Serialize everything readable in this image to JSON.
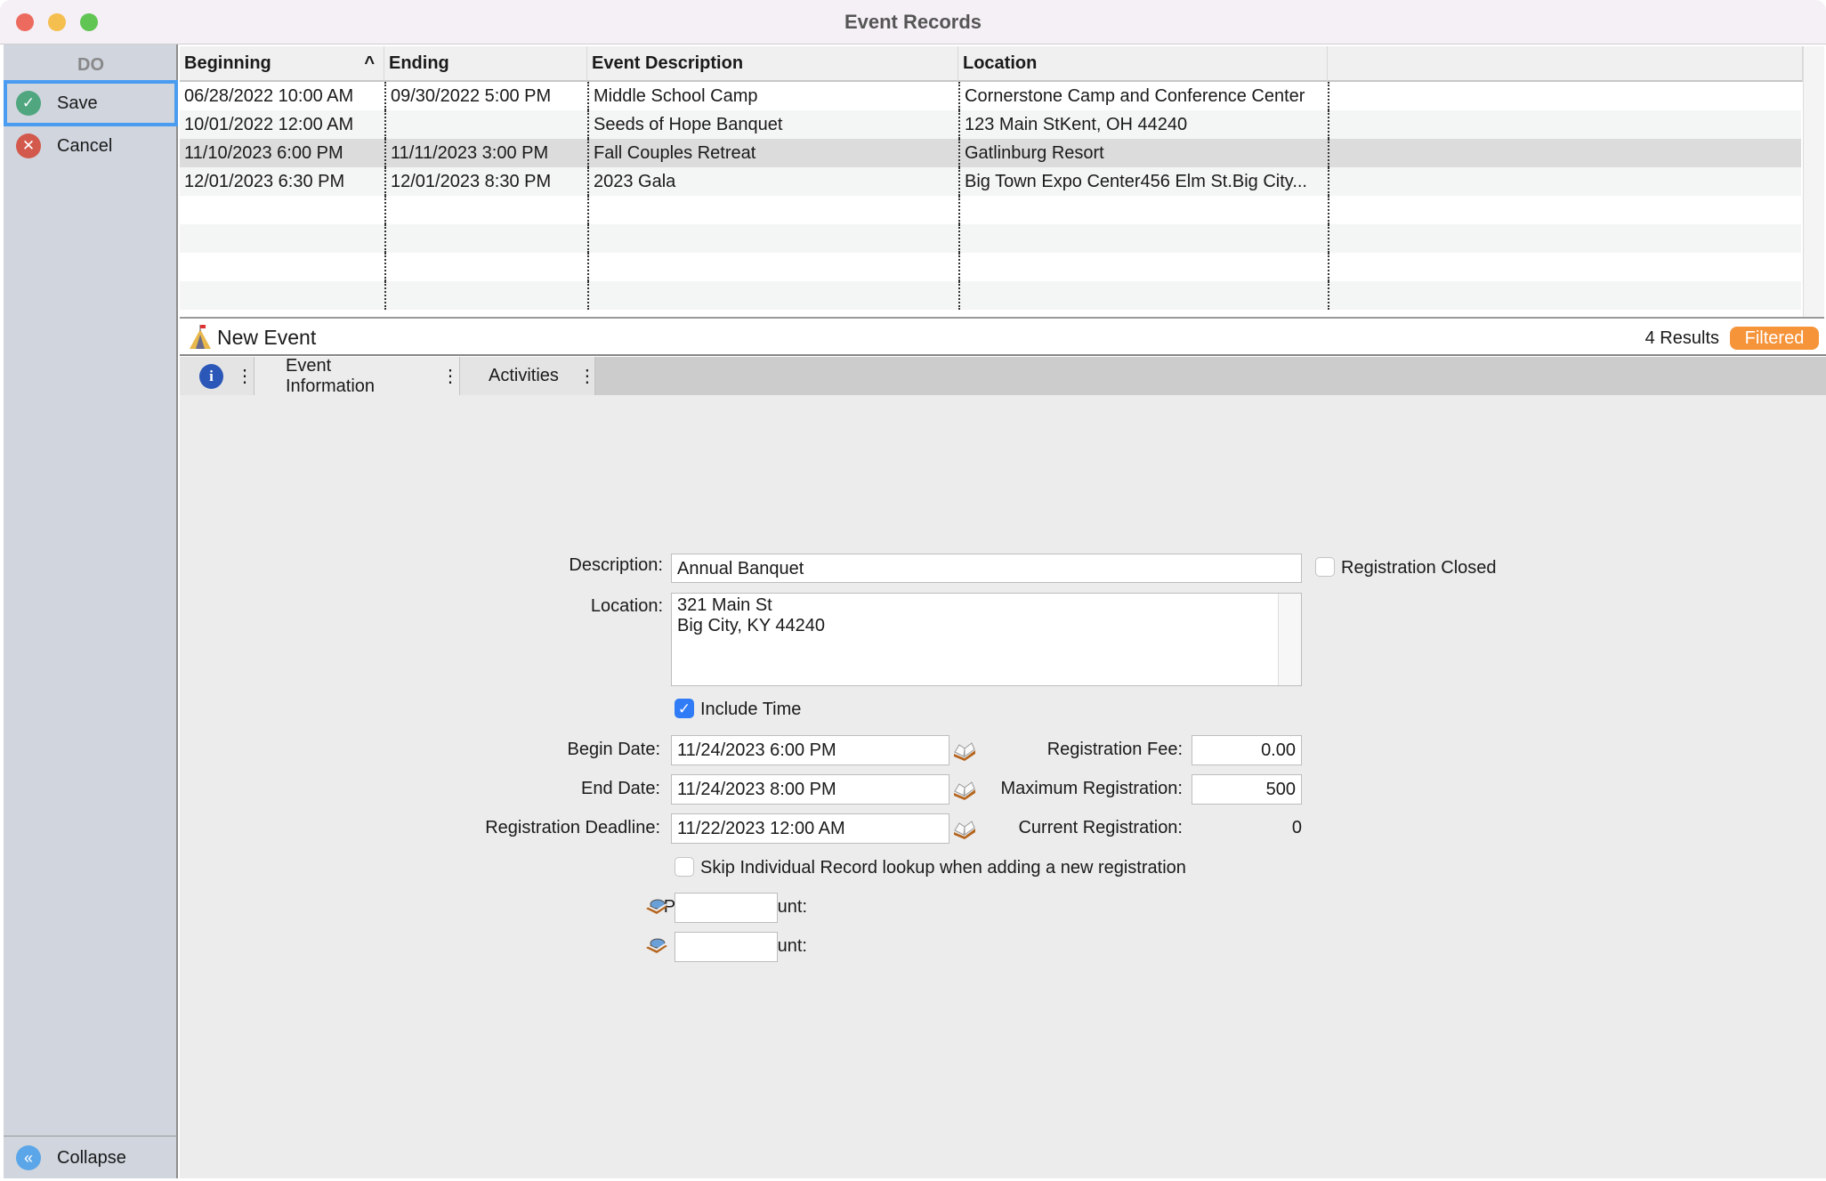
{
  "window": {
    "title": "Event Records"
  },
  "sidebar": {
    "header": "DO",
    "save": "Save",
    "cancel": "Cancel",
    "collapse": "Collapse"
  },
  "table": {
    "columns": [
      "Beginning",
      "Ending",
      "Event Description",
      "Location"
    ],
    "sort_indicator": "^",
    "rows": [
      [
        "06/28/2022 10:00 AM",
        "09/30/2022 5:00 PM",
        "Middle School Camp",
        "Cornerstone Camp and Conference Center"
      ],
      [
        "10/01/2022 12:00 AM",
        "",
        "Seeds of Hope Banquet",
        "123 Main StKent, OH 44240"
      ],
      [
        "11/10/2023 6:00 PM",
        "11/11/2023 3:00 PM",
        "Fall Couples Retreat",
        "Gatlinburg Resort"
      ],
      [
        "12/01/2023 6:30 PM",
        "12/01/2023 8:30 PM",
        "2023 Gala",
        "Big Town Expo Center456 Elm St.Big City..."
      ]
    ],
    "selected_row": 2
  },
  "record": {
    "title": "New Event",
    "results": "4 Results",
    "filter_badge": "Filtered"
  },
  "tabs": [
    "Event Information",
    "Activities"
  ],
  "form": {
    "description_label": "Description:",
    "description": "Annual Banquet",
    "registration_closed_label": "Registration Closed",
    "registration_closed": false,
    "location_label": "Location:",
    "location_line1": "321 Main St",
    "location_line2": "Big City, KY 44240",
    "include_time_label": "Include Time",
    "include_time": true,
    "begin_date_label": "Begin Date:",
    "begin_date": "11/24/2023 6:00 PM",
    "end_date_label": "End Date:",
    "end_date": "11/24/2023 8:00 PM",
    "deadline_label": "Registration Deadline:",
    "deadline": "11/22/2023 12:00 AM",
    "fee_label": "Registration Fee:",
    "fee": "0.00",
    "max_label": "Maximum Registration:",
    "max": "500",
    "current_label": "Current Registration:",
    "current": "0",
    "skip_label": "Skip Individual Record lookup when adding a new registration",
    "skip": false,
    "payment_label": "Payment Account:",
    "payment": "",
    "fee_account_label": "Fee Account:",
    "fee_account": ""
  },
  "colors": {
    "accent": "#4a9cf0",
    "filtered": "#f6943a",
    "save": "#4fa67f",
    "cancel": "#d2594c"
  }
}
